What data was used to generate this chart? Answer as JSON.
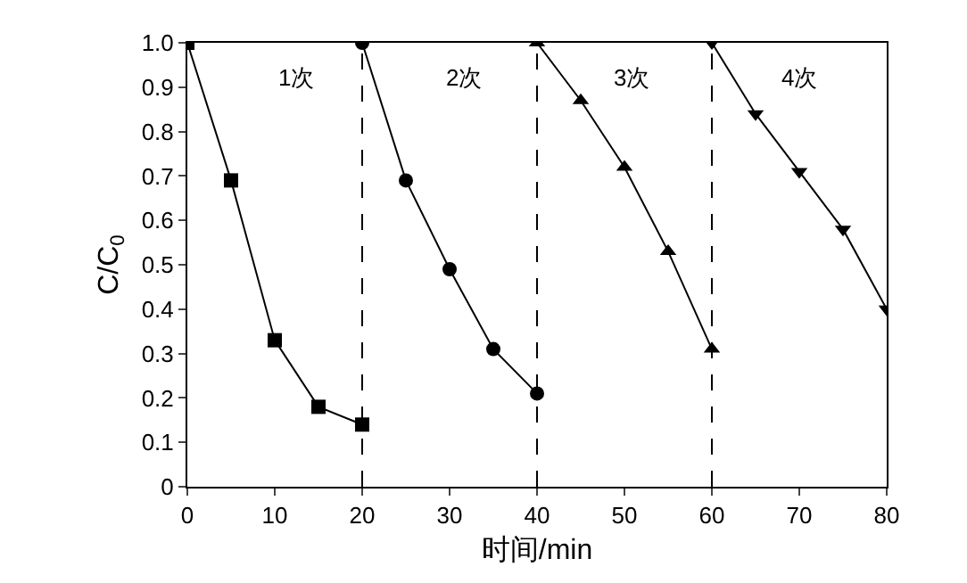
{
  "chart_data": {
    "type": "line",
    "xlabel": "时间/min",
    "ylabel": "C/C$_{0}$",
    "xlim": [
      0,
      80
    ],
    "xticks": [
      0,
      10,
      20,
      30,
      40,
      50,
      60,
      70,
      80
    ],
    "ylim": [
      0,
      1.0
    ],
    "yticks": [
      {
        "value": 0,
        "label": "0"
      },
      {
        "value": 0.1,
        "label": "0.1"
      },
      {
        "value": 0.2,
        "label": "0.2"
      },
      {
        "value": 0.3,
        "label": "0.3"
      },
      {
        "value": 0.4,
        "label": "0.4"
      },
      {
        "value": 0.5,
        "label": "0.5"
      },
      {
        "value": 0.6,
        "label": "0.6"
      },
      {
        "value": 0.7,
        "label": "0.7"
      },
      {
        "value": 0.8,
        "label": "0.8"
      },
      {
        "value": 0.9,
        "label": "0.9"
      },
      {
        "value": 1.0,
        "label": "1.0"
      }
    ],
    "line_style": "solid",
    "series": [
      {
        "color": "#000000",
        "marker": "square",
        "x": [
          0,
          5,
          10,
          15,
          20
        ],
        "values": [
          1.0,
          0.69,
          0.33,
          0.18,
          0.14
        ]
      },
      {
        "color": "#000000",
        "marker": "circle",
        "x": [
          20,
          25,
          30,
          35,
          40
        ],
        "values": [
          1.0,
          0.69,
          0.49,
          0.31,
          0.21
        ]
      },
      {
        "color": "#000000",
        "marker": "triangle",
        "x": [
          40,
          45,
          50,
          55,
          60
        ],
        "values": [
          1.0,
          0.87,
          0.72,
          0.53,
          0.31
        ]
      },
      {
        "color": "#000000",
        "marker": "triangle-down",
        "x": [
          60,
          65,
          70,
          75,
          80
        ],
        "values": [
          1.0,
          0.84,
          0.71,
          0.58,
          0.4
        ]
      }
    ],
    "ref_lines": [
      {
        "axis": "x",
        "value": 20,
        "line_style": "dashed",
        "color": "#000000"
      },
      {
        "axis": "x",
        "value": 40,
        "line_style": "dashed",
        "color": "#000000"
      },
      {
        "axis": "x",
        "value": 60,
        "line_style": "dashed",
        "color": "#000000"
      }
    ],
    "annotations": [
      "1次",
      "2次",
      "3次",
      "4次"
    ]
  }
}
